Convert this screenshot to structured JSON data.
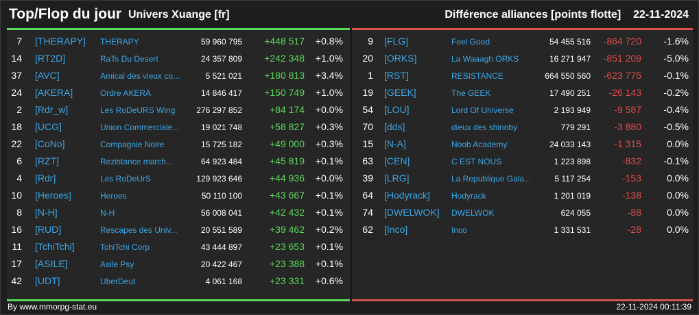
{
  "header": {
    "title": "Top/Flop du jour",
    "universe": "Univers Xuange [fr]",
    "right_title": "Différence alliances [points flotte]",
    "date": "22-11-2024"
  },
  "colors": {
    "positive": "#5cd65c",
    "negative": "#e04b4b",
    "tag": "#3ba6e6",
    "top_bar": "#59d95a",
    "flop_bar": "#d9534f"
  },
  "top": [
    {
      "rank": "7",
      "tag": "[THERAPY]",
      "name": "THERAPY",
      "points": "59 960 795",
      "diff": "+448 517",
      "pct": "+0.8%"
    },
    {
      "rank": "14",
      "tag": "[RT2D]",
      "name": "RaTs Du Desert",
      "points": "24 357 809",
      "diff": "+242 348",
      "pct": "+1.0%"
    },
    {
      "rank": "37",
      "tag": "[AVC]",
      "name": "Amical des vieux co...",
      "points": "5 521 021",
      "diff": "+180 813",
      "pct": "+3.4%"
    },
    {
      "rank": "24",
      "tag": "[AKERA]",
      "name": "Ordre AKERA",
      "points": "14 846 417",
      "diff": "+150 749",
      "pct": "+1.0%"
    },
    {
      "rank": "2",
      "tag": "[Rdr_w]",
      "name": "Les RoDeURS Wing",
      "points": "276 297 852",
      "diff": "+84 174",
      "pct": "+0.0%"
    },
    {
      "rank": "18",
      "tag": "[UCG]",
      "name": "Union Commerciale...",
      "points": "19 021 748",
      "diff": "+58 827",
      "pct": "+0.3%"
    },
    {
      "rank": "22",
      "tag": "[CoNo]",
      "name": "Compagnie Noire",
      "points": "15 725 182",
      "diff": "+49 000",
      "pct": "+0.3%"
    },
    {
      "rank": "6",
      "tag": "[RZT]",
      "name": "Rezistance march...",
      "points": "64 923 484",
      "diff": "+45 819",
      "pct": "+0.1%"
    },
    {
      "rank": "4",
      "tag": "[Rdr]",
      "name": "Les RoDeUrS",
      "points": "129 923 646",
      "diff": "+44 936",
      "pct": "+0.0%"
    },
    {
      "rank": "10",
      "tag": "[Heroes]",
      "name": "Heroes",
      "points": "50 110 100",
      "diff": "+43 667",
      "pct": "+0.1%"
    },
    {
      "rank": "8",
      "tag": "[N-H]",
      "name": "N-H",
      "points": "56 008 041",
      "diff": "+42 432",
      "pct": "+0.1%"
    },
    {
      "rank": "16",
      "tag": "[RUD]",
      "name": "Rescapes des Univ...",
      "points": "20 551 589",
      "diff": "+39 462",
      "pct": "+0.2%"
    },
    {
      "rank": "11",
      "tag": "[TchiTchi]",
      "name": "TchiTchi Corp",
      "points": "43 444 897",
      "diff": "+23 653",
      "pct": "+0.1%"
    },
    {
      "rank": "17",
      "tag": "[ASILE]",
      "name": "Asile Psy",
      "points": "20 422 467",
      "diff": "+23 388",
      "pct": "+0.1%"
    },
    {
      "rank": "42",
      "tag": "[UDT]",
      "name": "UberDeut",
      "points": "4 061 168",
      "diff": "+23 331",
      "pct": "+0.6%"
    }
  ],
  "flop": [
    {
      "rank": "9",
      "tag": "[FLG]",
      "name": "Feel Good",
      "points": "54 455 516",
      "diff": "-864 720",
      "pct": "-1.6%"
    },
    {
      "rank": "20",
      "tag": "[ORKS]",
      "name": "La Waaagh ORKS",
      "points": "16 271 947",
      "diff": "-851 209",
      "pct": "-5.0%"
    },
    {
      "rank": "1",
      "tag": "[RST]",
      "name": "RESISTANCE",
      "points": "664 550 560",
      "diff": "-623 775",
      "pct": "-0.1%"
    },
    {
      "rank": "19",
      "tag": "[GEEK]",
      "name": "The GEEK",
      "points": "17 490 251",
      "diff": "-26 143",
      "pct": "-0.2%"
    },
    {
      "rank": "54",
      "tag": "[LOU]",
      "name": "Lord Of Universe",
      "points": "2 193 949",
      "diff": "-9 587",
      "pct": "-0.4%"
    },
    {
      "rank": "70",
      "tag": "[dds]",
      "name": "dieux des shinoby",
      "points": "779 291",
      "diff": "-3 880",
      "pct": "-0.5%"
    },
    {
      "rank": "15",
      "tag": "[N-A]",
      "name": "Noob Academy",
      "points": "24 033 143",
      "diff": "-1 315",
      "pct": "0.0%"
    },
    {
      "rank": "63",
      "tag": "[CEN]",
      "name": "C EST NOUS",
      "points": "1 223 898",
      "diff": "-832",
      "pct": "-0.1%"
    },
    {
      "rank": "39",
      "tag": "[LRG]",
      "name": "La Republique Gala...",
      "points": "5 117 254",
      "diff": "-153",
      "pct": "0.0%"
    },
    {
      "rank": "64",
      "tag": "[Hodyrack]",
      "name": "Hodyrack",
      "points": "1 201 019",
      "diff": "-138",
      "pct": "0.0%"
    },
    {
      "rank": "74",
      "tag": "[DWELWOK]",
      "name": "DWELWOK",
      "points": "624 055",
      "diff": "-88",
      "pct": "0.0%"
    },
    {
      "rank": "62",
      "tag": "[Inco]",
      "name": "Inco",
      "points": "1 331 531",
      "diff": "-28",
      "pct": "0.0%"
    }
  ],
  "footer": {
    "credit": "By www.mmorpg-stat.eu",
    "timestamp": "22-11-2024 00:11:39"
  }
}
